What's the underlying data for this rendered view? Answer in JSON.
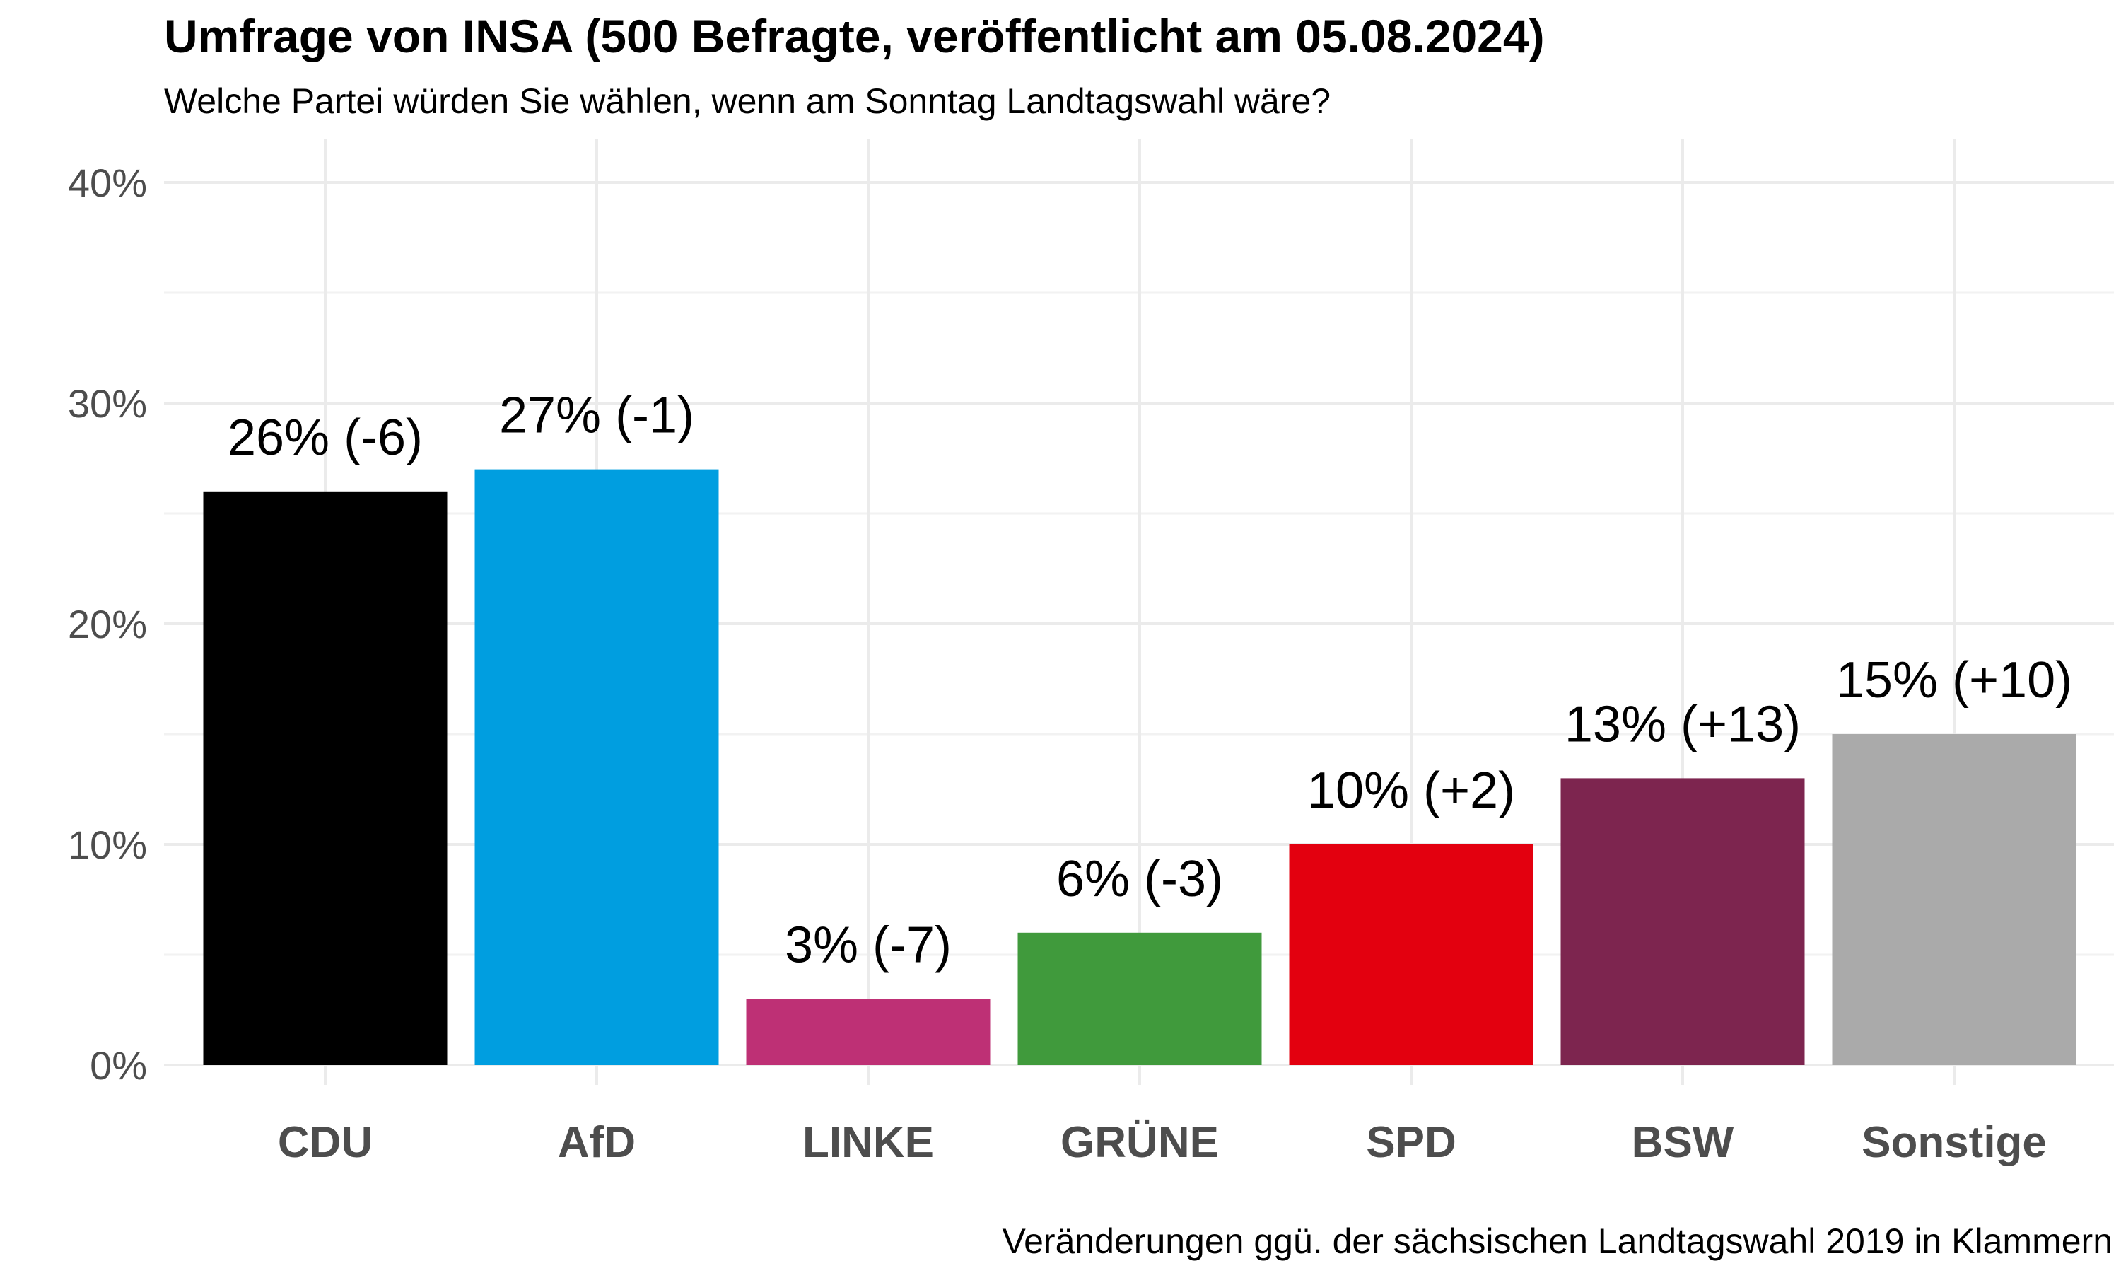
{
  "chart_data": {
    "type": "bar",
    "title": "Umfrage von INSA (500 Befragte, veröffentlicht am 05.08.2024)",
    "subtitle": "Welche Partei würden Sie wählen, wenn am Sonntag Landtagswahl wäre?",
    "caption": "Veränderungen ggü. der sächsischen Landtagswahl 2019 in Klammern",
    "xlabel": "",
    "ylabel": "",
    "ylim": [
      0,
      40
    ],
    "yticks": [
      0,
      10,
      20,
      30,
      40
    ],
    "ytick_labels": [
      "0%",
      "10%",
      "20%",
      "30%",
      "40%"
    ],
    "grid": true,
    "legend": "none",
    "categories": [
      "CDU",
      "AfD",
      "LINKE",
      "GRÜNE",
      "SPD",
      "BSW",
      "Sonstige"
    ],
    "values": [
      26,
      27,
      3,
      6,
      10,
      13,
      15
    ],
    "changes": [
      -6,
      -1,
      -7,
      -3,
      2,
      13,
      10
    ],
    "labels": [
      "26% (-6)",
      "27% (-1)",
      "3% (-7)",
      "6% (-3)",
      "10% (+2)",
      "13% (+13)",
      "15% (+10)"
    ],
    "colors": [
      "#000000",
      "#009ee0",
      "#be3075",
      "#409a3c",
      "#e3000f",
      "#7d254f",
      "#aaaaaa"
    ]
  }
}
